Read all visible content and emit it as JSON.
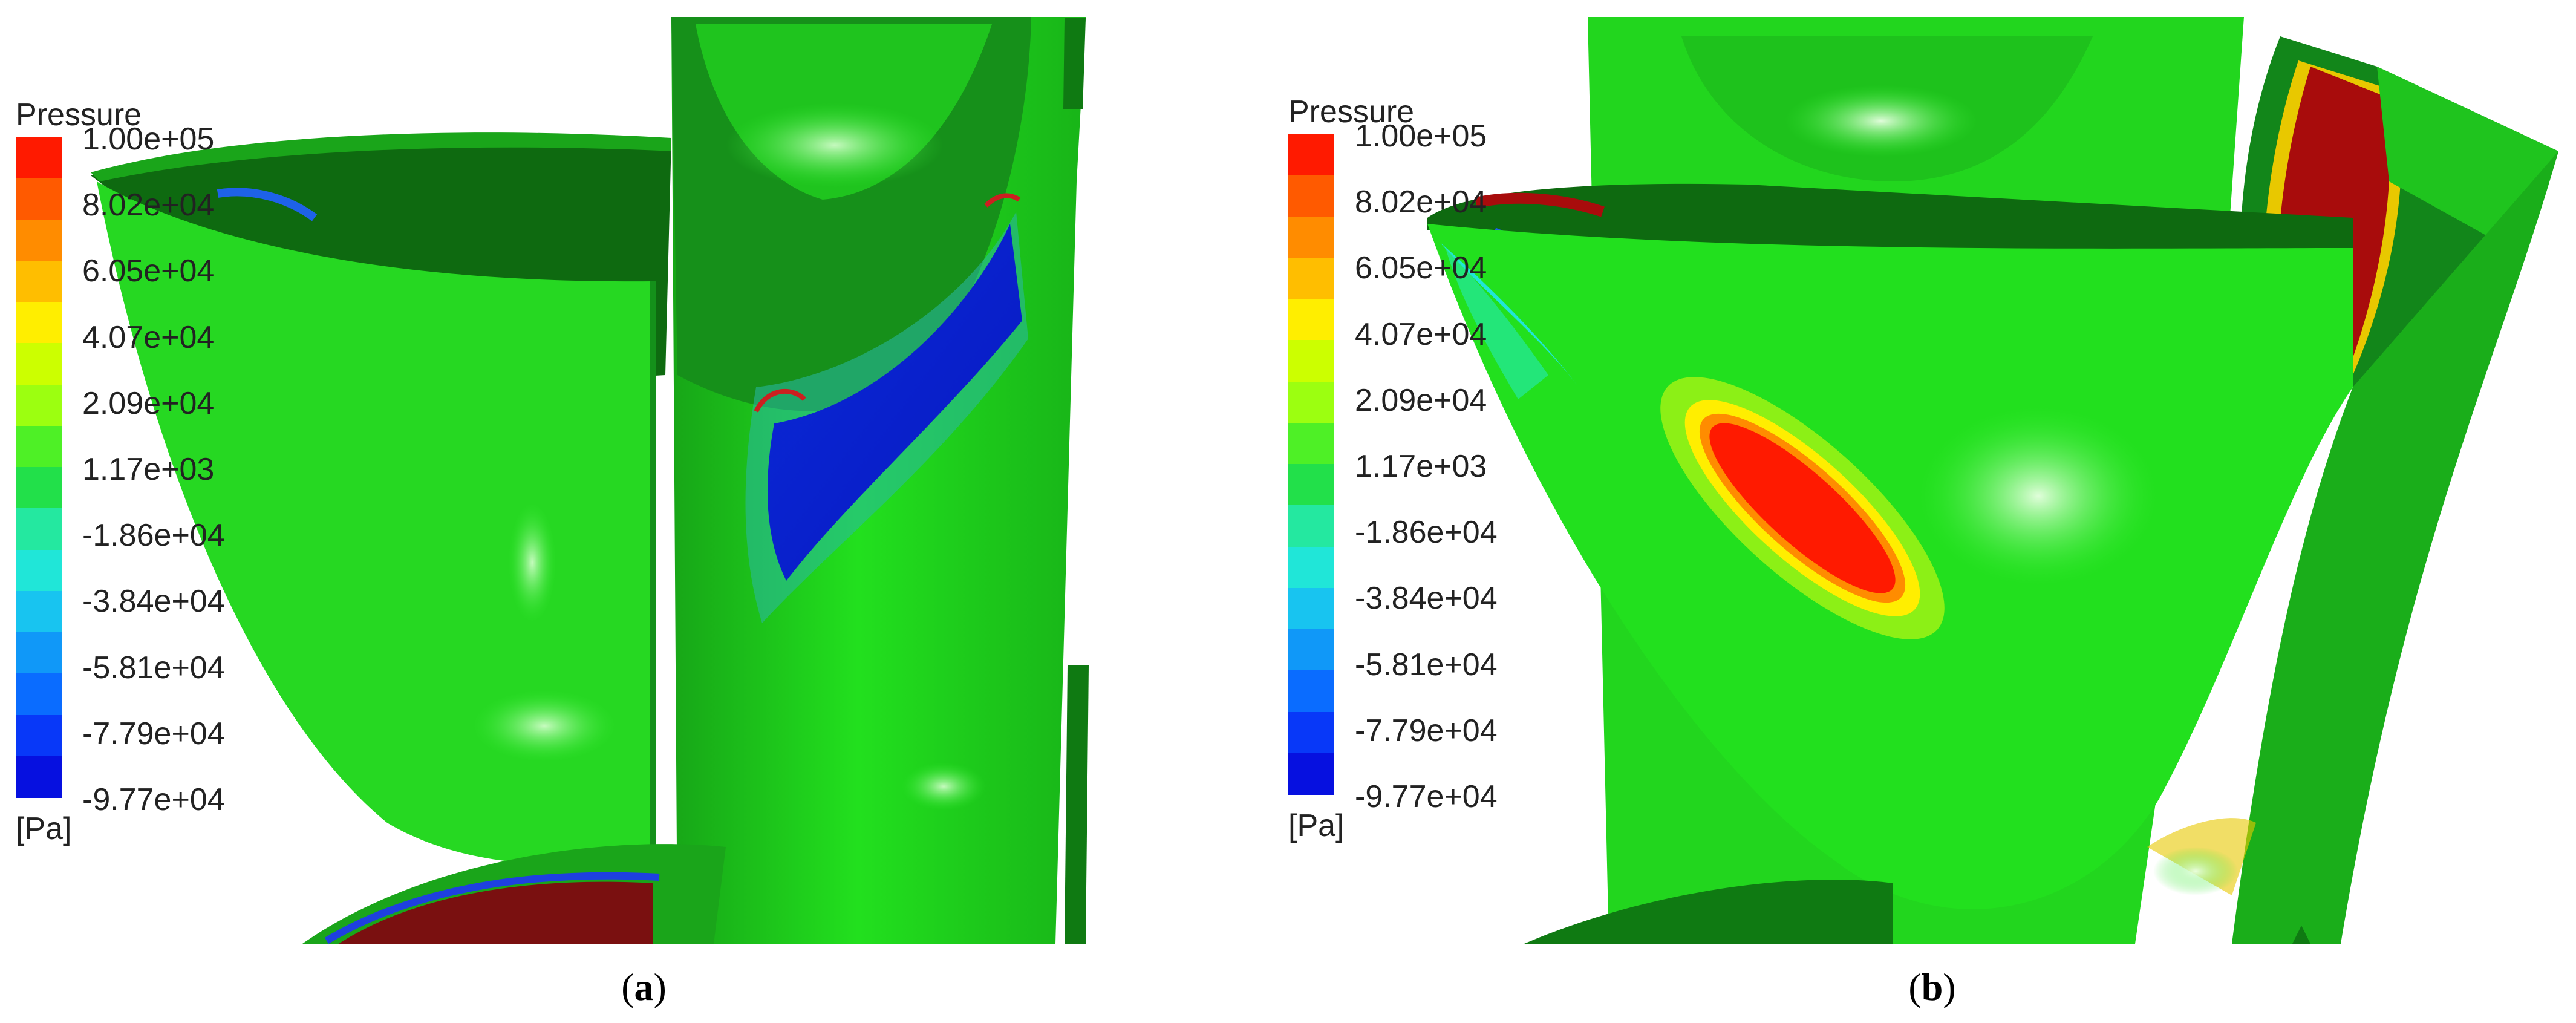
{
  "legend": {
    "title": "Pressure",
    "unit": "[Pa]",
    "ticks": [
      "1.00e+05",
      "8.02e+04",
      "6.05e+04",
      "4.07e+04",
      "2.09e+04",
      "1.17e+03",
      "-1.86e+04",
      "-3.84e+04",
      "-5.81e+04",
      "-7.79e+04",
      "-9.77e+04"
    ],
    "colors": [
      "#ff1a00",
      "#ff5a00",
      "#ff8c00",
      "#ffbe00",
      "#ffee00",
      "#ccff00",
      "#9cff10",
      "#4ef026",
      "#22e04a",
      "#24e8a0",
      "#20e6d8",
      "#18c4f0",
      "#1098f8",
      "#0a6cff",
      "#0838f8",
      "#0610e0"
    ]
  },
  "panels": [
    {
      "id": "a",
      "caption_letter": "a"
    },
    {
      "id": "b",
      "caption_letter": "b"
    }
  ]
}
